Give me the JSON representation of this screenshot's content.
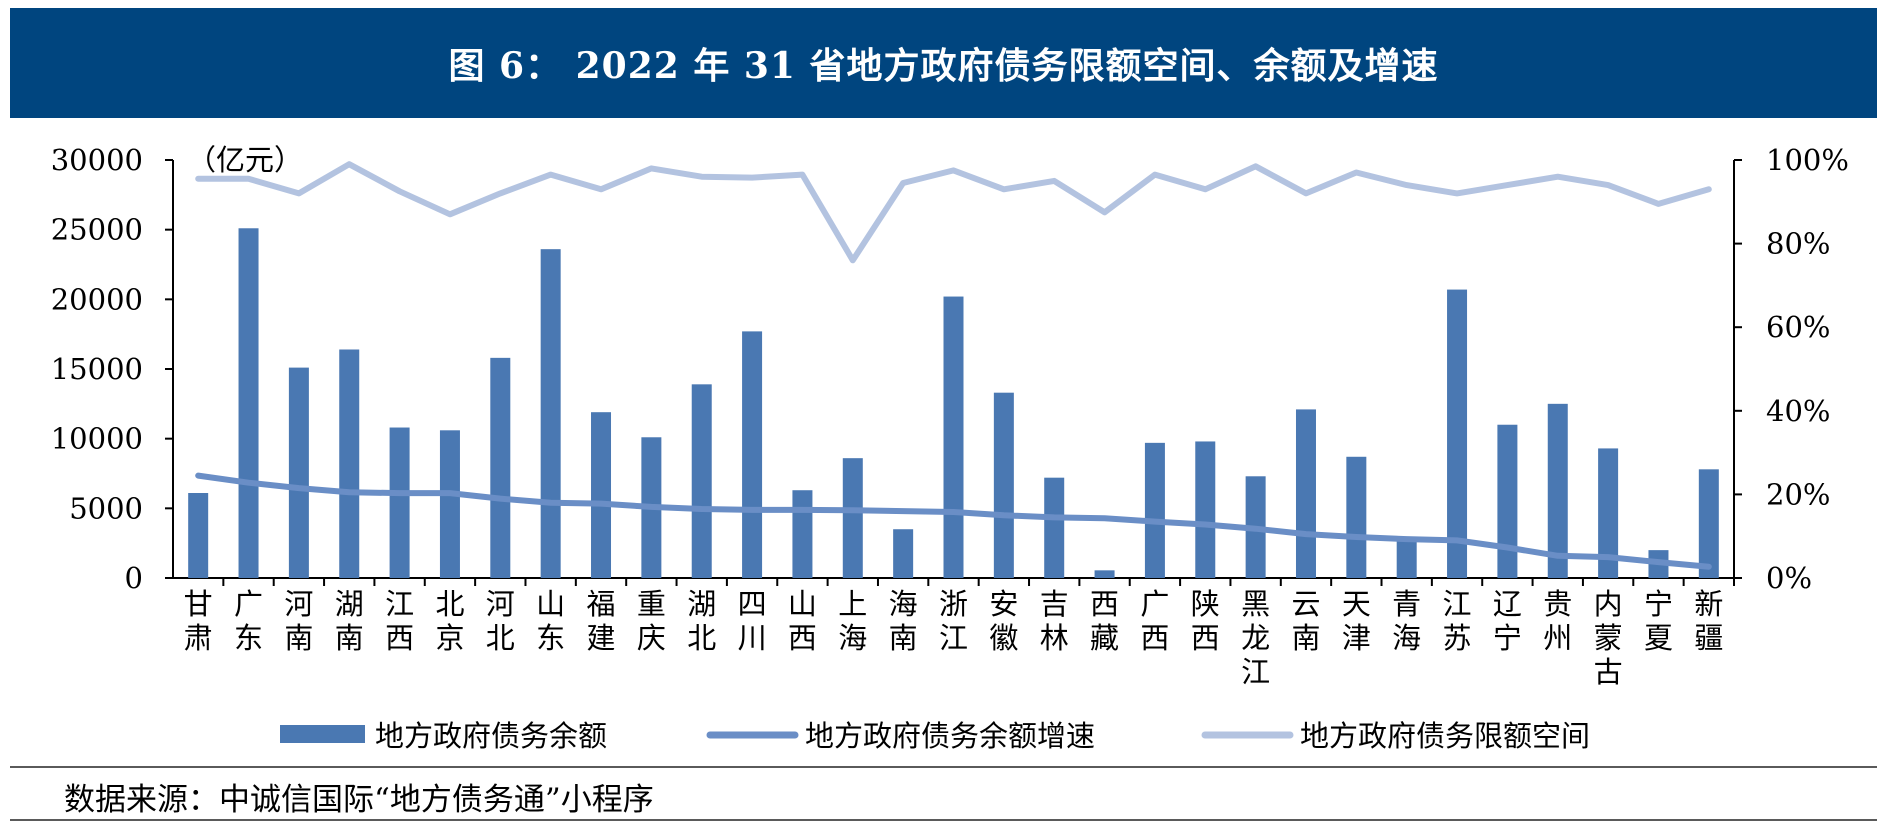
{
  "title": "图 6： 2022 年 31 省地方政府债务限额空间、余额及增速",
  "source": "数据来源：中诚信国际“地方债务通”小程序",
  "colors": {
    "bar": "#4a78b2",
    "growth": "#6a8ec6",
    "space": "#b3c3e0",
    "header": "#00457f"
  },
  "chart_data": {
    "type": "bar",
    "unit_label": "（亿元）",
    "categories": [
      "甘肃",
      "广东",
      "河南",
      "湖南",
      "江西",
      "北京",
      "河北",
      "山东",
      "福建",
      "重庆",
      "湖北",
      "四川",
      "山西",
      "上海",
      "海南",
      "浙江",
      "安徽",
      "吉林",
      "西藏",
      "广西",
      "陕西",
      "黑龙江",
      "云南",
      "天津",
      "青海",
      "江苏",
      "辽宁",
      "贵州",
      "内蒙古",
      "宁夏",
      "新疆"
    ],
    "y_left": {
      "range": [
        0,
        30000
      ],
      "ticks": [
        0,
        5000,
        10000,
        15000,
        20000,
        25000,
        30000
      ]
    },
    "y_right": {
      "range": [
        0,
        1
      ],
      "ticks": [
        0,
        0.2,
        0.4,
        0.6,
        0.8,
        1.0
      ],
      "tick_labels": [
        "0%",
        "20%",
        "40%",
        "60%",
        "80%",
        "100%"
      ]
    },
    "legend": {
      "position": "bottom"
    },
    "series": [
      {
        "name": "地方政府债务余额",
        "type": "bar",
        "axis": "left",
        "values": [
          6100,
          25100,
          15100,
          16400,
          10800,
          10600,
          15800,
          23600,
          11900,
          10100,
          13900,
          17700,
          6300,
          8600,
          3500,
          20200,
          13300,
          7200,
          550,
          9700,
          9800,
          7300,
          12100,
          8700,
          2700,
          20700,
          11000,
          12500,
          9300,
          2000,
          7800
        ]
      },
      {
        "name": "地方政府债务余额增速",
        "type": "line",
        "axis": "right",
        "values": [
          0.245,
          0.228,
          0.215,
          0.205,
          0.203,
          0.203,
          0.19,
          0.18,
          0.178,
          0.17,
          0.165,
          0.163,
          0.163,
          0.162,
          0.16,
          0.158,
          0.15,
          0.145,
          0.143,
          0.135,
          0.128,
          0.118,
          0.105,
          0.098,
          0.093,
          0.09,
          0.073,
          0.053,
          0.05,
          0.038,
          0.027
        ]
      },
      {
        "name": "地方政府债务限额空间",
        "type": "line",
        "axis": "right",
        "values": [
          0.955,
          0.955,
          0.92,
          0.99,
          0.925,
          0.87,
          0.92,
          0.965,
          0.93,
          0.98,
          0.96,
          0.958,
          0.965,
          0.76,
          0.945,
          0.975,
          0.93,
          0.95,
          0.875,
          0.965,
          0.93,
          0.985,
          0.92,
          0.97,
          0.94,
          0.92,
          0.94,
          0.96,
          0.94,
          0.895,
          0.93
        ]
      }
    ]
  }
}
